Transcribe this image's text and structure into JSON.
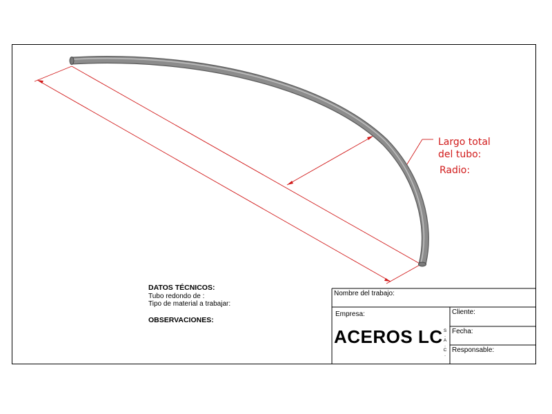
{
  "annotations": {
    "length_line1": "Largo total",
    "length_line2": "del tubo:",
    "radius": "Radio:"
  },
  "technical": {
    "heading": "DATOS TÉCNICOS:",
    "tube_label": "Tubo redondo de :",
    "material_label": "Tipo de material a trabajar:",
    "observations_heading": "OBSERVACIONES:"
  },
  "title_block": {
    "job_name_label": "Nombre del trabajo:",
    "company_label": "Empresa:",
    "company_name": "ACEROS LC",
    "company_suffix": "S.A.C.",
    "client_label": "Cliente:",
    "date_label": "Fecha:",
    "responsible_label": "Responsable:"
  },
  "colors": {
    "dimension_red": "#d11a1a",
    "tube_gray": "#8c8c8c",
    "border_black": "#000000"
  }
}
